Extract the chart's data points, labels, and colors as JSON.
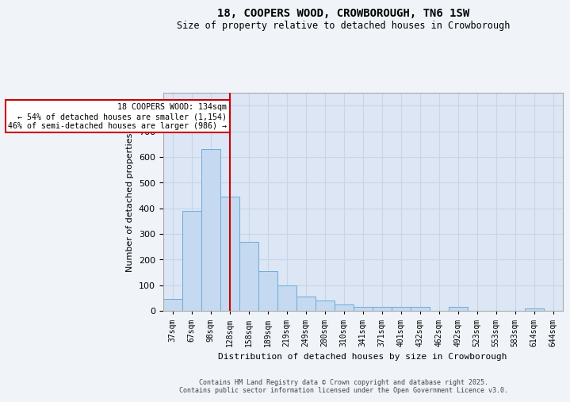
{
  "title1": "18, COOPERS WOOD, CROWBOROUGH, TN6 1SW",
  "title2": "Size of property relative to detached houses in Crowborough",
  "xlabel": "Distribution of detached houses by size in Crowborough",
  "ylabel": "Number of detached properties",
  "categories": [
    "37sqm",
    "67sqm",
    "98sqm",
    "128sqm",
    "158sqm",
    "189sqm",
    "219sqm",
    "249sqm",
    "280sqm",
    "310sqm",
    "341sqm",
    "371sqm",
    "401sqm",
    "432sqm",
    "462sqm",
    "492sqm",
    "523sqm",
    "553sqm",
    "583sqm",
    "614sqm",
    "644sqm"
  ],
  "values": [
    45,
    390,
    630,
    445,
    270,
    155,
    100,
    55,
    40,
    25,
    15,
    15,
    15,
    15,
    0,
    15,
    0,
    0,
    0,
    10,
    0
  ],
  "bar_color": "#c5d9f0",
  "bar_edge_color": "#6aacd8",
  "ylim": [
    0,
    850
  ],
  "yticks": [
    0,
    100,
    200,
    300,
    400,
    500,
    600,
    700,
    800
  ],
  "property_line_index": 3,
  "property_line_color": "#cc0000",
  "annotation_text": "18 COOPERS WOOD: 134sqm\n← 54% of detached houses are smaller (1,154)\n46% of semi-detached houses are larger (986) →",
  "annotation_color": "#cc0000",
  "grid_color": "#c8d4e8",
  "background_color": "#dce6f5",
  "fig_background": "#f0f4f8",
  "footer_line1": "Contains HM Land Registry data © Crown copyright and database right 2025.",
  "footer_line2": "Contains public sector information licensed under the Open Government Licence v3.0."
}
